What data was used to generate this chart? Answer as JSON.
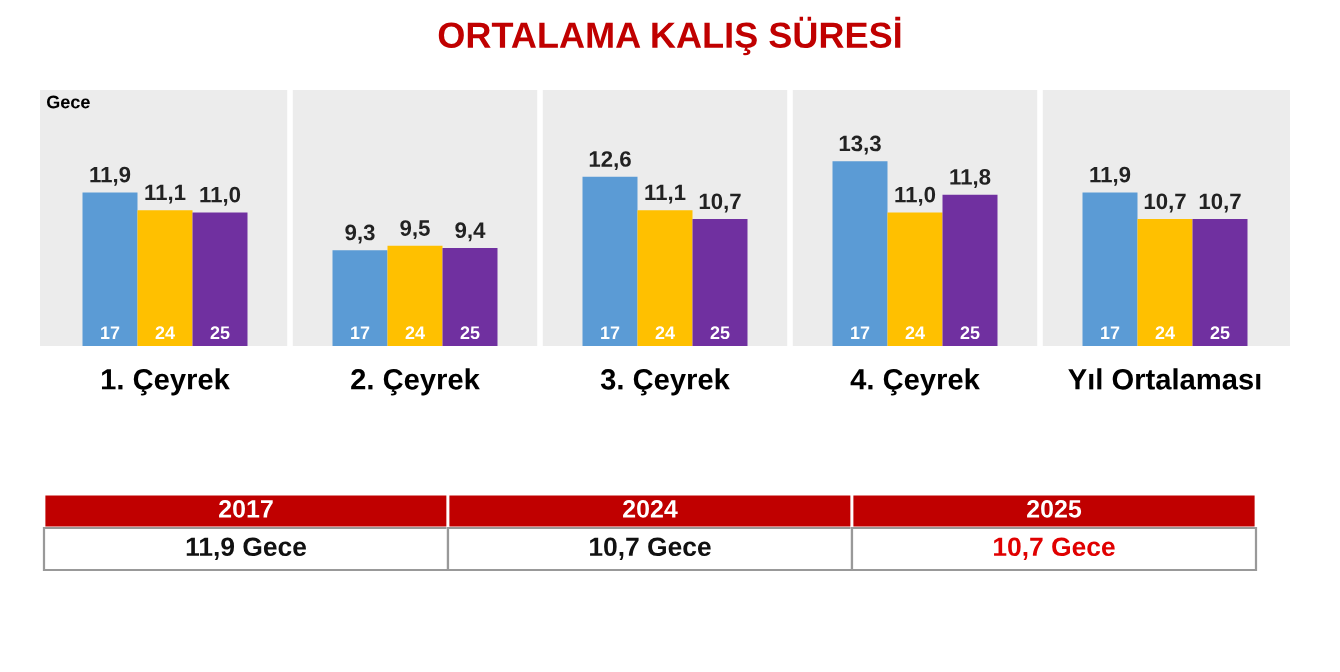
{
  "chart_data": {
    "type": "bar",
    "title": "ORTALAMA KALIŞ SÜRESİ",
    "ylabel": "Gece",
    "categories": [
      "1. Çeyrek",
      "2. Çeyrek",
      "3. Çeyrek",
      "4. Çeyrek",
      "Yıl Ortalaması"
    ],
    "series": [
      {
        "name": "17",
        "color": "#5b9bd5",
        "values": [
          11.9,
          9.3,
          12.6,
          13.3,
          11.9
        ],
        "value_labels": [
          "11,9",
          "9,3",
          "12,6",
          "13,3",
          "11,9"
        ]
      },
      {
        "name": "24",
        "color": "#ffc000",
        "values": [
          11.1,
          9.5,
          11.1,
          11.0,
          10.7
        ],
        "value_labels": [
          "11,1",
          "9,5",
          "11,1",
          "11,0",
          "10,7"
        ]
      },
      {
        "name": "25",
        "color": "#7030a0",
        "values": [
          11.0,
          9.4,
          10.7,
          11.8,
          10.7
        ],
        "value_labels": [
          "11,0",
          "9,4",
          "10,7",
          "11,8",
          "10,7"
        ]
      }
    ],
    "ylim": [
      5,
      16.5
    ],
    "tick_labels": "x",
    "grid": false,
    "legend": false,
    "annotations": [
      "2017",
      "2024",
      "2025",
      "11,9 Gece",
      "10,7 Gece",
      "10,7 Gece"
    ]
  }
}
